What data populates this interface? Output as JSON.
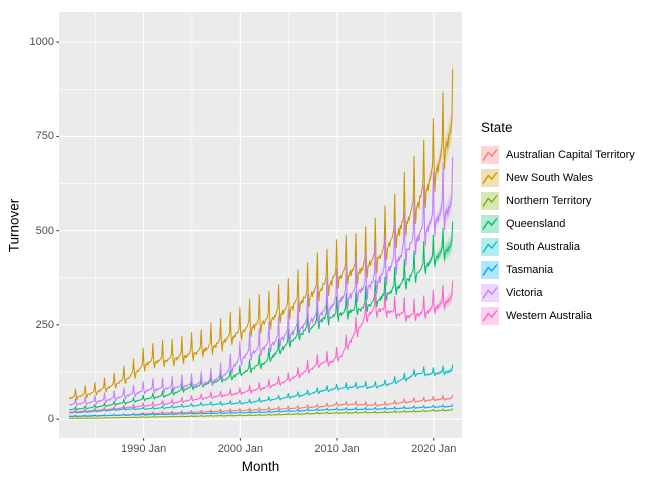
{
  "figure": {
    "background": "#FFFFFF"
  },
  "chart_data": {
    "type": "line",
    "title": "",
    "xlabel": "Month",
    "ylabel": "Turnover",
    "legend": {
      "title": "State",
      "position": "right"
    },
    "x_ticks": [
      {
        "value": 1990,
        "label": "1990 Jan"
      },
      {
        "value": 2000,
        "label": "2000 Jan"
      },
      {
        "value": 2010,
        "label": "2010 Jan"
      },
      {
        "value": 2020,
        "label": "2020 Jan"
      }
    ],
    "x_minor": [
      1985,
      1995,
      2005,
      2015
    ],
    "y_ticks": [
      {
        "value": 0,
        "label": "0"
      },
      {
        "value": 250,
        "label": "250"
      },
      {
        "value": 500,
        "label": "500"
      },
      {
        "value": 750,
        "label": "750"
      },
      {
        "value": 1000,
        "label": "1000"
      }
    ],
    "y_minor": [
      125,
      375,
      625,
      875
    ],
    "x_domain": [
      1981.25,
      2022.92
    ],
    "y_domain": [
      -50,
      1080
    ],
    "ylim": [
      0,
      1000
    ],
    "data_start": {
      "year": 1982,
      "month": 4
    },
    "history_end_year": 2018,
    "forecast_end_year": 2021,
    "grid": true,
    "theme": {
      "panel_bg": "#EBEBEB",
      "grid_major": "#FFFFFF",
      "grid_minor": "#FFFFFF",
      "tick_mark": "#333333",
      "tick_text": "#4D4D4D",
      "title_text": "#000000",
      "ribbon_opacity_outer": 0.2,
      "ribbon_opacity_inner": 0.28,
      "legend_key_tint_opacity": 0.3
    },
    "seasonal_index_monthly": [
      0.97,
      0.88,
      0.965,
      0.96,
      0.98,
      0.945,
      0.985,
      0.98,
      0.99,
      1.005,
      1.03,
      1.25
    ],
    "seasonal_amplitude_decay": [
      1.28,
      0.8
    ],
    "series": [
      {
        "name": "Australian Capital Territory",
        "color": "#F8766D",
        "seasonal_strength": 0.8,
        "anchor_years": [
          1982,
          1984,
          1986,
          1988,
          1990,
          1992,
          1994,
          1996,
          1998,
          2000,
          2002,
          2004,
          2006,
          2008,
          2009,
          2010,
          2011,
          2012,
          2013,
          2014,
          2015,
          2016,
          2017,
          2018,
          2019,
          2020,
          2021
        ],
        "anchor_values": [
          7,
          8,
          10,
          12,
          15,
          17,
          18,
          20,
          22,
          24,
          26,
          28,
          31,
          34,
          37,
          39,
          40,
          39,
          37.5,
          38,
          41,
          44,
          47,
          49,
          51,
          53,
          55
        ]
      },
      {
        "name": "New South Wales",
        "color": "#CD9600",
        "seasonal_strength": 1.0,
        "anchor_years": [
          1982,
          1984,
          1986,
          1988,
          1990,
          1992,
          1994,
          1996,
          1998,
          2000,
          2002,
          2004,
          2006,
          2008,
          2010,
          2012,
          2014,
          2016,
          2018,
          2019,
          2020,
          2021
        ],
        "anchor_values": [
          58,
          70,
          88,
          115,
          155,
          162,
          175,
          192,
          215,
          245,
          265,
          295,
          325,
          360,
          395,
          405,
          445,
          515,
          590,
          640,
          690,
          760
        ]
      },
      {
        "name": "Northern Territory",
        "color": "#7CAE00",
        "seasonal_strength": 0.8,
        "anchor_years": [
          1982,
          1985,
          1988,
          1990,
          1992,
          1994,
          1996,
          1998,
          2000,
          2002,
          2004,
          2006,
          2008,
          2010,
          2012,
          2014,
          2016,
          2018,
          2019,
          2020,
          2021
        ],
        "anchor_values": [
          2.2,
          3,
          4.5,
          5.5,
          6.5,
          7.5,
          8.5,
          9.2,
          10,
          11,
          12.5,
          14,
          16,
          16.5,
          17.5,
          18,
          19.5,
          21,
          22,
          23,
          24
        ]
      },
      {
        "name": "Queensland",
        "color": "#00BE67",
        "seasonal_strength": 0.65,
        "anchor_years": [
          1982,
          1984,
          1986,
          1988,
          1990,
          1992,
          1994,
          1996,
          1998,
          2000,
          2002,
          2004,
          2006,
          2008,
          2010,
          2012,
          2014,
          2016,
          2018,
          2019,
          2020,
          2021
        ],
        "anchor_values": [
          26,
          31,
          38,
          46,
          56,
          65,
          82,
          95,
          108,
          128,
          152,
          195,
          235,
          268,
          285,
          298,
          325,
          360,
          400,
          420,
          440,
          460
        ]
      },
      {
        "name": "South Australia",
        "color": "#00BFC4",
        "seasonal_strength": 0.6,
        "anchor_years": [
          1982,
          1984,
          1986,
          1988,
          1990,
          1992,
          1994,
          1996,
          1998,
          2000,
          2002,
          2004,
          2006,
          2008,
          2010,
          2012,
          2013,
          2014,
          2015,
          2016,
          2017,
          2018,
          2019,
          2020,
          2021
        ],
        "anchor_values": [
          17,
          20,
          24,
          27,
          28,
          31,
          35,
          39,
          41,
          44,
          50,
          57,
          65,
          76,
          84,
          88,
          86,
          90,
          95,
          103,
          112,
          124,
          120,
          124,
          128
        ]
      },
      {
        "name": "Tasmania",
        "color": "#00A9FF",
        "seasonal_strength": 0.7,
        "anchor_years": [
          1982,
          1984,
          1986,
          1988,
          1990,
          1992,
          1994,
          1996,
          1998,
          2000,
          2002,
          2004,
          2006,
          2008,
          2010,
          2012,
          2014,
          2016,
          2018,
          2019,
          2020,
          2021
        ],
        "anchor_values": [
          8,
          9,
          10,
          11,
          12,
          13,
          14.5,
          15.5,
          16.5,
          17.5,
          19,
          21,
          23,
          25,
          26,
          26.5,
          27.5,
          29,
          31,
          32,
          33,
          34
        ]
      },
      {
        "name": "Victoria",
        "color": "#C77CFF",
        "seasonal_strength": 1.05,
        "anchor_years": [
          1982,
          1984,
          1986,
          1988,
          1990,
          1992,
          1994,
          1996,
          1997,
          1998,
          1999,
          2000,
          2002,
          2004,
          2006,
          2008,
          2010,
          2012,
          2014,
          2016,
          2018,
          2019,
          2020,
          2021
        ],
        "anchor_values": [
          40,
          46,
          54,
          66,
          80,
          85,
          92,
          100,
          108,
          125,
          150,
          175,
          195,
          225,
          255,
          290,
          330,
          350,
          385,
          440,
          500,
          525,
          550,
          570
        ]
      },
      {
        "name": "Western Australia",
        "color": "#FF61CC",
        "seasonal_strength": 0.7,
        "anchor_years": [
          1982,
          1984,
          1986,
          1988,
          1990,
          1992,
          1994,
          1996,
          1998,
          2000,
          2002,
          2004,
          2006,
          2008,
          2009,
          2010,
          2011,
          2012,
          2013,
          2014,
          2015,
          2016,
          2017,
          2018,
          2019,
          2020,
          2021
        ],
        "anchor_values": [
          19,
          23,
          27,
          32,
          37,
          42,
          50,
          58,
          65,
          73,
          85,
          100,
          125,
          152,
          155,
          172,
          215,
          255,
          290,
          295,
          290,
          282,
          278,
          282,
          292,
          305,
          320
        ]
      }
    ]
  }
}
